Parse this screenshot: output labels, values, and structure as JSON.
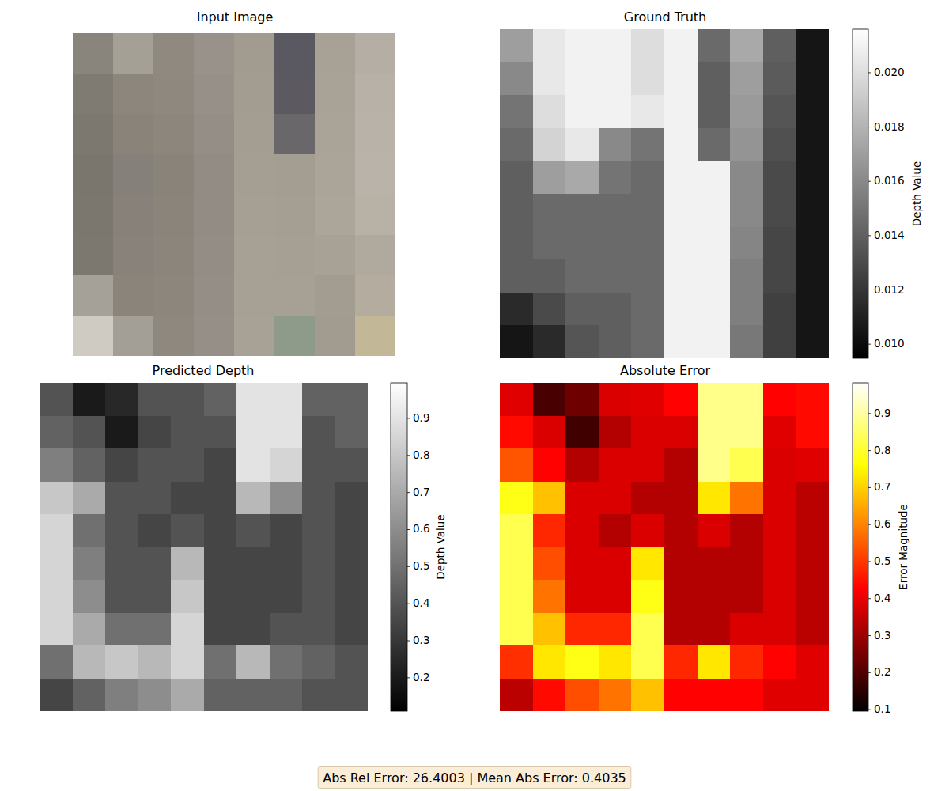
{
  "chart_data": [
    {
      "type": "image",
      "title": "Input Image",
      "colors": [
        [
          "#8a857c",
          "#a5a095",
          "#8f897f",
          "#99928a",
          "#a29b90",
          "#5a5860",
          "#a8a196",
          "#b5aea4"
        ],
        [
          "#7f7a72",
          "#8c867d",
          "#8e887e",
          "#979088",
          "#a39c91",
          "#5c5a60",
          "#a9a297",
          "#b8b1a7"
        ],
        [
          "#7c776f",
          "#89837a",
          "#8c867c",
          "#958e86",
          "#a49d92",
          "#6a676a",
          "#aaa398",
          "#b9b2a8"
        ],
        [
          "#7a756d",
          "#86807a",
          "#89837a",
          "#938c84",
          "#a59e93",
          "#a49d92",
          "#aba499",
          "#bab3a9"
        ],
        [
          "#7b766e",
          "#87817a",
          "#8a847b",
          "#938c84",
          "#a69f94",
          "#a59e93",
          "#aca59a",
          "#b8b1a6"
        ],
        [
          "#7c776f",
          "#88827a",
          "#8b857c",
          "#948d85",
          "#a7a095",
          "#a69f94",
          "#a8a196",
          "#b0a99e"
        ],
        [
          "#a6a198",
          "#8a847b",
          "#8c867d",
          "#958e86",
          "#a7a095",
          "#a7a095",
          "#a39c91",
          "#b4ad9f"
        ],
        [
          "#cfcac2",
          "#a39e96",
          "#8e887f",
          "#968f87",
          "#a8a196",
          "#8e9a8a",
          "#a29b90",
          "#c2b898"
        ]
      ]
    },
    {
      "type": "heatmap",
      "title": "Ground Truth",
      "color": "gray",
      "cells": [
        [
          0.017,
          0.0205,
          0.021,
          0.021,
          0.02,
          0.021,
          0.0145,
          0.0175,
          0.014,
          0.0105
        ],
        [
          0.016,
          0.0205,
          0.021,
          0.021,
          0.02,
          0.021,
          0.014,
          0.017,
          0.0138,
          0.0105
        ],
        [
          0.015,
          0.02,
          0.021,
          0.021,
          0.0205,
          0.021,
          0.014,
          0.0168,
          0.0135,
          0.0105
        ],
        [
          0.0145,
          0.0195,
          0.0205,
          0.016,
          0.015,
          0.021,
          0.0145,
          0.0165,
          0.0133,
          0.0105
        ],
        [
          0.014,
          0.017,
          0.0175,
          0.015,
          0.0145,
          0.021,
          0.021,
          0.016,
          0.013,
          0.0105
        ],
        [
          0.014,
          0.0145,
          0.0145,
          0.0145,
          0.0145,
          0.021,
          0.021,
          0.016,
          0.013,
          0.0105
        ],
        [
          0.014,
          0.0145,
          0.0145,
          0.0145,
          0.0145,
          0.021,
          0.021,
          0.0158,
          0.0128,
          0.0105
        ],
        [
          0.014,
          0.014,
          0.0145,
          0.0145,
          0.0145,
          0.021,
          0.021,
          0.0155,
          0.0128,
          0.0105
        ],
        [
          0.0115,
          0.013,
          0.014,
          0.014,
          0.0145,
          0.021,
          0.021,
          0.0155,
          0.0125,
          0.0105
        ],
        [
          0.0105,
          0.0115,
          0.0135,
          0.014,
          0.0145,
          0.021,
          0.021,
          0.0152,
          0.0125,
          0.0105
        ]
      ],
      "colorbar_label": "Depth Value",
      "colorbar_range": [
        0.00948,
        0.0216
      ],
      "colorbar_ticks": [
        {
          "value": 0.01,
          "label": "0.010"
        },
        {
          "value": 0.012,
          "label": "0.012"
        },
        {
          "value": 0.014,
          "label": "0.014"
        },
        {
          "value": 0.016,
          "label": "0.016"
        },
        {
          "value": 0.018,
          "label": "0.018"
        },
        {
          "value": 0.02,
          "label": "0.020"
        }
      ]
    },
    {
      "type": "heatmap",
      "title": "Predicted Depth",
      "color": "gray",
      "cells": [
        [
          0.4,
          0.2,
          0.25,
          0.4,
          0.4,
          0.45,
          0.9,
          0.9,
          0.45,
          0.45
        ],
        [
          0.45,
          0.4,
          0.2,
          0.35,
          0.4,
          0.4,
          0.9,
          0.9,
          0.4,
          0.45
        ],
        [
          0.55,
          0.45,
          0.35,
          0.4,
          0.4,
          0.35,
          0.9,
          0.85,
          0.4,
          0.4
        ],
        [
          0.8,
          0.7,
          0.4,
          0.4,
          0.35,
          0.35,
          0.75,
          0.6,
          0.4,
          0.35
        ],
        [
          0.85,
          0.5,
          0.4,
          0.35,
          0.4,
          0.35,
          0.4,
          0.35,
          0.4,
          0.35
        ],
        [
          0.85,
          0.55,
          0.4,
          0.4,
          0.75,
          0.35,
          0.35,
          0.35,
          0.4,
          0.35
        ],
        [
          0.85,
          0.6,
          0.4,
          0.4,
          0.8,
          0.35,
          0.35,
          0.35,
          0.4,
          0.35
        ],
        [
          0.85,
          0.7,
          0.5,
          0.5,
          0.85,
          0.35,
          0.35,
          0.4,
          0.4,
          0.35
        ],
        [
          0.5,
          0.75,
          0.8,
          0.75,
          0.85,
          0.5,
          0.75,
          0.5,
          0.45,
          0.4
        ],
        [
          0.35,
          0.45,
          0.55,
          0.6,
          0.7,
          0.45,
          0.45,
          0.45,
          0.4,
          0.4
        ]
      ],
      "colorbar_label": "Depth Value",
      "colorbar_range": [
        0.11,
        0.996
      ],
      "colorbar_ticks": [
        0.2,
        0.3,
        0.4,
        0.5,
        0.6,
        0.7,
        0.8,
        0.9
      ]
    },
    {
      "type": "heatmap",
      "title": "Absolute Error",
      "color": "hot",
      "cells": [
        [
          0.39,
          0.19,
          0.24,
          0.38,
          0.39,
          0.43,
          0.88,
          0.88,
          0.43,
          0.44
        ],
        [
          0.44,
          0.38,
          0.18,
          0.33,
          0.38,
          0.38,
          0.88,
          0.88,
          0.39,
          0.44
        ],
        [
          0.54,
          0.43,
          0.33,
          0.38,
          0.38,
          0.33,
          0.88,
          0.83,
          0.38,
          0.39
        ],
        [
          0.78,
          0.68,
          0.38,
          0.38,
          0.33,
          0.33,
          0.73,
          0.58,
          0.38,
          0.34
        ],
        [
          0.83,
          0.48,
          0.38,
          0.33,
          0.38,
          0.33,
          0.38,
          0.33,
          0.38,
          0.34
        ],
        [
          0.83,
          0.53,
          0.38,
          0.38,
          0.73,
          0.33,
          0.33,
          0.33,
          0.38,
          0.34
        ],
        [
          0.83,
          0.58,
          0.38,
          0.38,
          0.78,
          0.33,
          0.33,
          0.33,
          0.38,
          0.34
        ],
        [
          0.83,
          0.68,
          0.48,
          0.48,
          0.83,
          0.33,
          0.33,
          0.38,
          0.38,
          0.34
        ],
        [
          0.49,
          0.73,
          0.78,
          0.73,
          0.83,
          0.48,
          0.73,
          0.48,
          0.43,
          0.39
        ],
        [
          0.34,
          0.44,
          0.53,
          0.58,
          0.68,
          0.43,
          0.43,
          0.43,
          0.39,
          0.39
        ]
      ],
      "colorbar_label": "Error Magnitude",
      "colorbar_range": [
        0.096,
        0.983
      ],
      "colorbar_ticks": [
        0.1,
        0.2,
        0.3,
        0.4,
        0.5,
        0.6,
        0.7,
        0.8,
        0.9
      ]
    }
  ],
  "footer": "Abs Rel Error: 26.4003 | Mean Abs Error: 0.4035"
}
